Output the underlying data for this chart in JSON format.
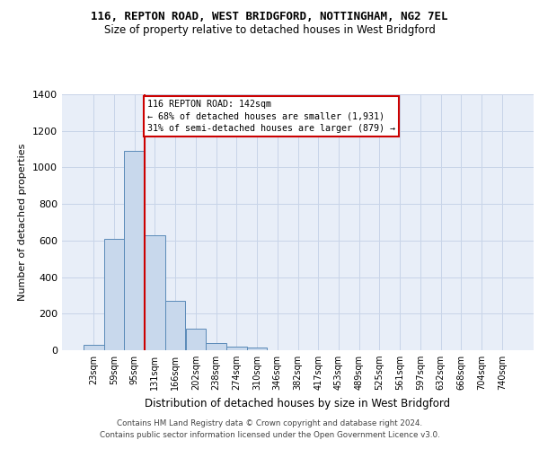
{
  "title_line1": "116, REPTON ROAD, WEST BRIDGFORD, NOTTINGHAM, NG2 7EL",
  "title_line2": "Size of property relative to detached houses in West Bridgford",
  "xlabel": "Distribution of detached houses by size in West Bridgford",
  "ylabel": "Number of detached properties",
  "footnote1": "Contains HM Land Registry data © Crown copyright and database right 2024.",
  "footnote2": "Contains public sector information licensed under the Open Government Licence v3.0.",
  "bar_categories": [
    "23sqm",
    "59sqm",
    "95sqm",
    "131sqm",
    "166sqm",
    "202sqm",
    "238sqm",
    "274sqm",
    "310sqm",
    "346sqm",
    "382sqm",
    "417sqm",
    "453sqm",
    "489sqm",
    "525sqm",
    "561sqm",
    "597sqm",
    "632sqm",
    "668sqm",
    "704sqm",
    "740sqm"
  ],
  "bar_values": [
    30,
    610,
    1090,
    630,
    270,
    120,
    40,
    22,
    15,
    0,
    0,
    0,
    0,
    0,
    0,
    0,
    0,
    0,
    0,
    0,
    0
  ],
  "bar_color": "#c8d8ec",
  "bar_edge_color": "#5a8ab8",
  "grid_color": "#c8d4e8",
  "background_color": "#ffffff",
  "plot_bg_color": "#e8eef8",
  "vline_x_idx": 3,
  "vline_color": "#cc0000",
  "annotation_text": "116 REPTON ROAD: 142sqm\n← 68% of detached houses are smaller (1,931)\n31% of semi-detached houses are larger (879) →",
  "ylim": [
    0,
    1400
  ],
  "yticks": [
    0,
    200,
    400,
    600,
    800,
    1000,
    1200,
    1400
  ]
}
